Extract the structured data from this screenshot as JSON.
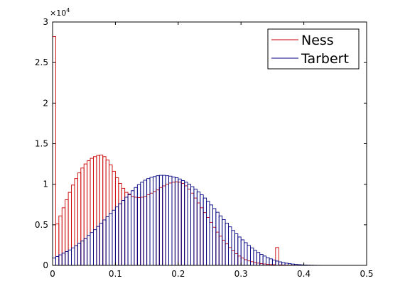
{
  "chart_data": {
    "type": "bar",
    "subtype": "overlaid-histogram",
    "title": "",
    "xlabel": "",
    "ylabel": "",
    "xlim": [
      0,
      0.5
    ],
    "ylim": [
      0,
      30000
    ],
    "bin_width": 0.005,
    "y_exponent_label": {
      "base": "×10",
      "power": "4"
    },
    "x_ticks": [
      {
        "value": 0,
        "label": "0"
      },
      {
        "value": 0.1,
        "label": "0.1"
      },
      {
        "value": 0.2,
        "label": "0.2"
      },
      {
        "value": 0.3,
        "label": "0.3"
      },
      {
        "value": 0.4,
        "label": "0.4"
      },
      {
        "value": 0.5,
        "label": "0.5"
      }
    ],
    "y_ticks": [
      {
        "value": 0,
        "label": "0"
      },
      {
        "value": 5000,
        "label": "0.5"
      },
      {
        "value": 10000,
        "label": "1"
      },
      {
        "value": 15000,
        "label": "1.5"
      },
      {
        "value": 20000,
        "label": "2"
      },
      {
        "value": 25000,
        "label": "2.5"
      },
      {
        "value": 30000,
        "label": "3"
      }
    ],
    "grid": false,
    "legend_position": "top-right",
    "series": [
      {
        "name": "Ness",
        "color": "#cc0000",
        "values": [
          28200,
          5100,
          6100,
          7100,
          8100,
          9000,
          9900,
          10700,
          11400,
          12000,
          12500,
          12900,
          13200,
          13400,
          13550,
          13600,
          13400,
          13000,
          12400,
          11600,
          10800,
          10100,
          9500,
          9000,
          8700,
          8500,
          8400,
          8350,
          8400,
          8500,
          8700,
          8900,
          9100,
          9300,
          9600,
          9800,
          10000,
          10150,
          10250,
          10300,
          10250,
          10100,
          9800,
          9400,
          8900,
          8300,
          7700,
          7100,
          6500,
          5900,
          5300,
          4700,
          4100,
          3600,
          3100,
          2650,
          2200,
          1800,
          1450,
          1150,
          900,
          700,
          550,
          450,
          350,
          280,
          220,
          170,
          130,
          100,
          80,
          2200,
          60,
          45,
          35,
          25,
          18,
          12,
          8,
          5,
          3,
          2,
          1,
          1,
          1,
          0,
          0,
          0,
          0,
          0,
          0,
          0,
          0,
          0,
          0,
          0,
          0,
          0,
          0,
          0
        ]
      },
      {
        "name": "Tarbert",
        "color": "#000080",
        "values": [
          900,
          1100,
          1300,
          1500,
          1700,
          1900,
          2150,
          2400,
          2700,
          3000,
          3300,
          3700,
          4050,
          4400,
          4800,
          5200,
          5600,
          6000,
          6400,
          6800,
          7200,
          7600,
          8000,
          8400,
          8800,
          9200,
          9600,
          9950,
          10250,
          10500,
          10700,
          10850,
          10950,
          11050,
          11100,
          11100,
          11050,
          11000,
          10900,
          10800,
          10650,
          10450,
          10250,
          10000,
          9700,
          9400,
          9050,
          8700,
          8300,
          7900,
          7450,
          7000,
          6550,
          6100,
          5650,
          5200,
          4750,
          4300,
          3900,
          3500,
          3150,
          2800,
          2450,
          2150,
          1850,
          1600,
          1350,
          1150,
          950,
          800,
          650,
          530,
          430,
          340,
          270,
          210,
          160,
          120,
          90,
          65,
          45,
          30,
          20,
          12,
          8,
          5,
          3,
          2,
          1,
          1,
          1,
          0,
          0,
          0,
          0,
          0,
          0,
          0,
          0,
          0
        ]
      }
    ]
  }
}
